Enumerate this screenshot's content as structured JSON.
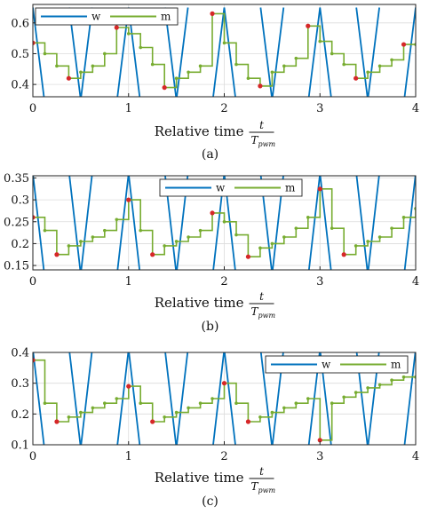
{
  "colors": {
    "w": "#0072BD",
    "m": "#77AC30",
    "sample": "#D62728",
    "grid": "#DCDCDC"
  },
  "chart_data": [
    {
      "panel": "(a)",
      "type": "line",
      "xlabel": "Relative time",
      "xfrac": {
        "num": "t",
        "den": "T",
        "den_sub": "pwm"
      },
      "xlim": [
        0,
        4
      ],
      "ylim": [
        0.36,
        0.66
      ],
      "xticks": [
        "0",
        "1",
        "2",
        "3",
        "4"
      ],
      "yticks": [
        0.4,
        0.5,
        0.6
      ],
      "ytick_labels": [
        "0.4",
        "0.5",
        "0.6"
      ],
      "legend": {
        "position": "top-left",
        "entries": [
          "w",
          "m"
        ]
      },
      "series": [
        {
          "name": "w",
          "kind": "carrier",
          "low": 0.35,
          "high": 0.65
        },
        {
          "name": "m",
          "kind": "staircase",
          "x": [
            0,
            0.125,
            0.25,
            0.375,
            0.5,
            0.625,
            0.75,
            0.875,
            1.0,
            1.125,
            1.25,
            1.375,
            1.5,
            1.625,
            1.75,
            1.875,
            2.0,
            2.125,
            2.25,
            2.375,
            2.5,
            2.625,
            2.75,
            2.875,
            3.0,
            3.125,
            3.25,
            3.375,
            3.5,
            3.625,
            3.75,
            3.875,
            4.0
          ],
          "y": [
            0.535,
            0.5,
            0.46,
            0.42,
            0.44,
            0.46,
            0.5,
            0.585,
            0.565,
            0.52,
            0.465,
            0.39,
            0.42,
            0.44,
            0.46,
            0.63,
            0.535,
            0.465,
            0.42,
            0.395,
            0.44,
            0.46,
            0.485,
            0.59,
            0.54,
            0.5,
            0.465,
            0.42,
            0.44,
            0.46,
            0.48,
            0.53,
            0.53
          ]
        }
      ],
      "samples": {
        "x": [
          0,
          0.375,
          0.875,
          1.375,
          1.875,
          2.375,
          2.875,
          3.375,
          3.875
        ],
        "y": [
          0.535,
          0.42,
          0.585,
          0.39,
          0.63,
          0.395,
          0.59,
          0.42,
          0.53
        ]
      }
    },
    {
      "panel": "(b)",
      "type": "line",
      "xlabel": "Relative time",
      "xfrac": {
        "num": "t",
        "den": "T",
        "den_sub": "pwm"
      },
      "xlim": [
        0,
        4
      ],
      "ylim": [
        0.14,
        0.355
      ],
      "xticks": [
        "0",
        "1",
        "2",
        "3",
        "4"
      ],
      "yticks": [
        0.15,
        0.2,
        0.25,
        0.3,
        0.35
      ],
      "ytick_labels": [
        "0.15",
        "0.2",
        "0.25",
        "0.3",
        "0.35"
      ],
      "legend": {
        "position": "top-center",
        "entries": [
          "w",
          "m"
        ]
      },
      "series": [
        {
          "name": "w",
          "kind": "carrier",
          "low": 0.13,
          "high": 0.36
        },
        {
          "name": "m",
          "kind": "staircase",
          "x": [
            0,
            0.125,
            0.25,
            0.375,
            0.5,
            0.625,
            0.75,
            0.875,
            1.0,
            1.125,
            1.25,
            1.375,
            1.5,
            1.625,
            1.75,
            1.875,
            2.0,
            2.125,
            2.25,
            2.375,
            2.5,
            2.625,
            2.75,
            2.875,
            3.0,
            3.125,
            3.25,
            3.375,
            3.5,
            3.625,
            3.75,
            3.875,
            4.0
          ],
          "y": [
            0.26,
            0.23,
            0.175,
            0.195,
            0.205,
            0.215,
            0.23,
            0.255,
            0.3,
            0.23,
            0.175,
            0.195,
            0.205,
            0.215,
            0.23,
            0.27,
            0.25,
            0.22,
            0.17,
            0.19,
            0.2,
            0.215,
            0.235,
            0.26,
            0.325,
            0.235,
            0.175,
            0.195,
            0.205,
            0.215,
            0.235,
            0.26,
            0.28
          ]
        }
      ],
      "samples": {
        "x": [
          0,
          0.25,
          1.0,
          1.25,
          1.875,
          2.25,
          3.0,
          3.25
        ],
        "y": [
          0.26,
          0.175,
          0.3,
          0.175,
          0.27,
          0.17,
          0.325,
          0.175
        ]
      }
    },
    {
      "panel": "(c)",
      "type": "line",
      "xlabel": "Relative time",
      "xfrac": {
        "num": "t",
        "den": "T",
        "den_sub": "pwm"
      },
      "xlim": [
        0,
        4
      ],
      "ylim": [
        0.1,
        0.4
      ],
      "xticks": [
        "0",
        "1",
        "2",
        "3",
        "4"
      ],
      "yticks": [
        0.1,
        0.2,
        0.3,
        0.4
      ],
      "ytick_labels": [
        "0.1",
        "0.2",
        "0.3",
        "0.4"
      ],
      "legend": {
        "position": "top-right",
        "entries": [
          "w",
          "m"
        ]
      },
      "series": [
        {
          "name": "w",
          "kind": "carrier",
          "low": 0.09,
          "high": 0.41
        },
        {
          "name": "m",
          "kind": "staircase",
          "x": [
            0,
            0.125,
            0.25,
            0.375,
            0.5,
            0.625,
            0.75,
            0.875,
            1.0,
            1.125,
            1.25,
            1.375,
            1.5,
            1.625,
            1.75,
            1.875,
            2.0,
            2.125,
            2.25,
            2.375,
            2.5,
            2.625,
            2.75,
            2.875,
            3.0,
            3.125,
            3.25,
            3.375,
            3.5,
            3.625,
            3.75,
            3.875,
            4.0
          ],
          "y": [
            0.375,
            0.235,
            0.175,
            0.19,
            0.205,
            0.22,
            0.235,
            0.25,
            0.29,
            0.235,
            0.175,
            0.19,
            0.205,
            0.22,
            0.235,
            0.25,
            0.3,
            0.235,
            0.175,
            0.19,
            0.205,
            0.22,
            0.235,
            0.25,
            0.115,
            0.235,
            0.255,
            0.27,
            0.285,
            0.295,
            0.31,
            0.32,
            0.32
          ]
        }
      ],
      "samples": {
        "x": [
          0,
          0.25,
          1.0,
          1.25,
          2.0,
          2.25,
          3.0
        ],
        "y": [
          0.375,
          0.175,
          0.29,
          0.175,
          0.3,
          0.175,
          0.115
        ]
      }
    }
  ]
}
